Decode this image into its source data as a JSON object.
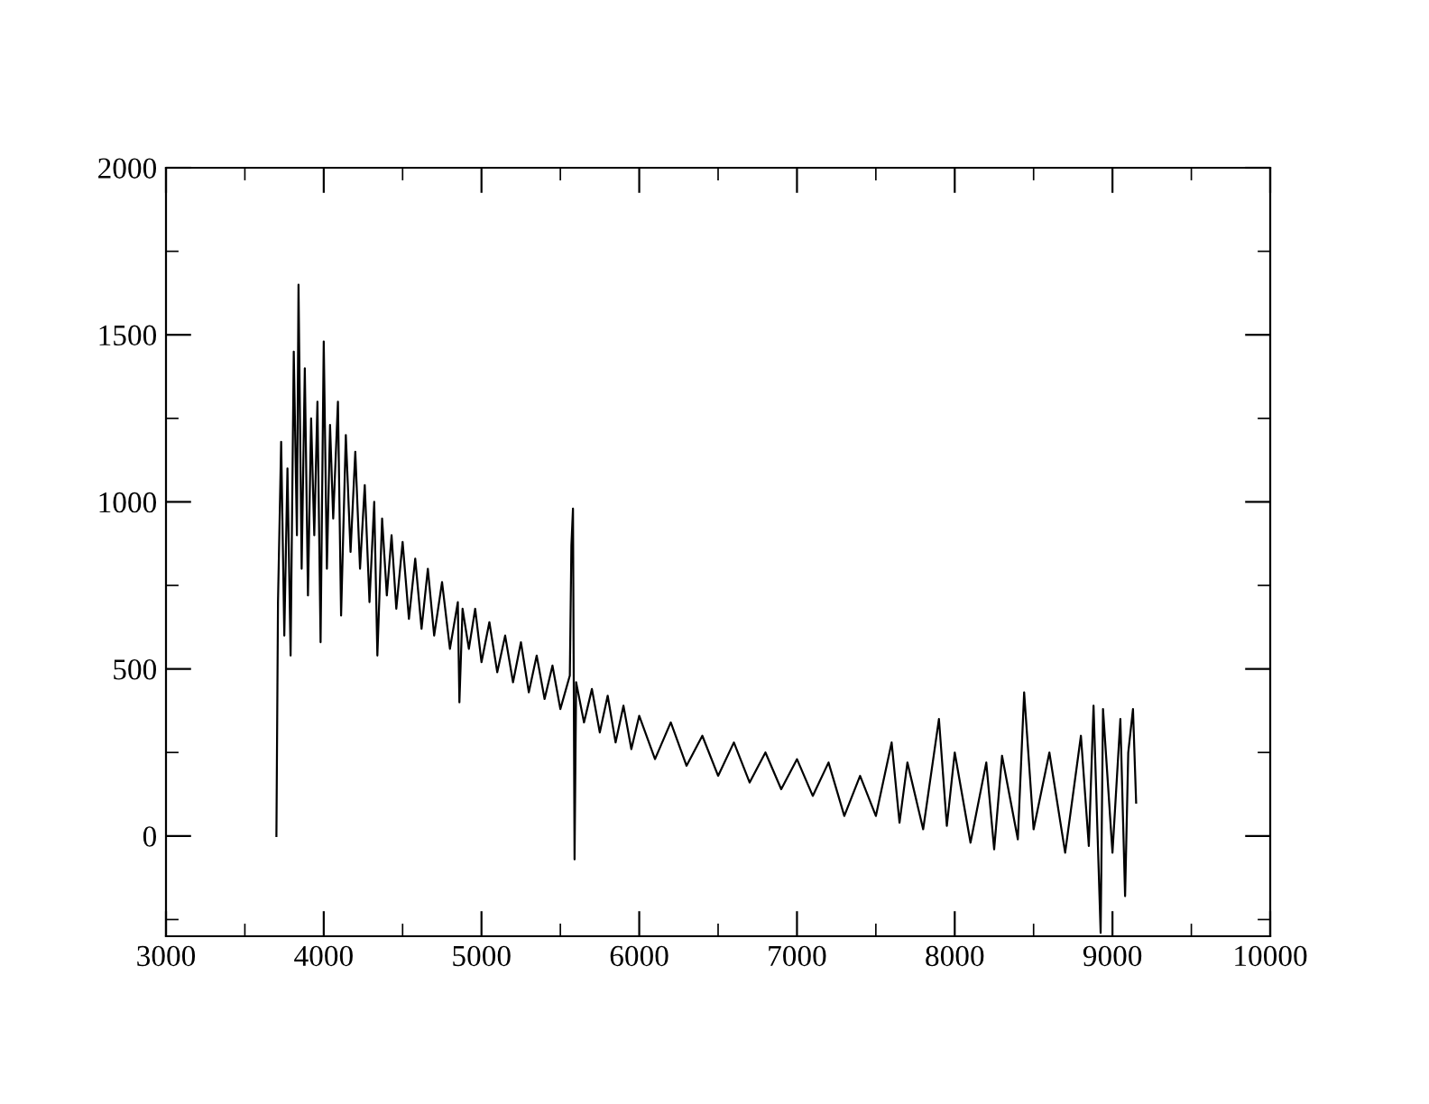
{
  "chart_data": {
    "type": "line",
    "x": [
      3700,
      3710,
      3730,
      3750,
      3770,
      3790,
      3810,
      3830,
      3840,
      3860,
      3880,
      3900,
      3920,
      3940,
      3960,
      3980,
      4000,
      4020,
      4040,
      4060,
      4090,
      4110,
      4140,
      4170,
      4200,
      4230,
      4260,
      4290,
      4320,
      4340,
      4370,
      4400,
      4430,
      4460,
      4500,
      4540,
      4580,
      4620,
      4660,
      4700,
      4750,
      4800,
      4850,
      4860,
      4880,
      4920,
      4960,
      5000,
      5050,
      5100,
      5150,
      5200,
      5250,
      5300,
      5350,
      5400,
      5450,
      5500,
      5560,
      5570,
      5580,
      5590,
      5600,
      5650,
      5700,
      5750,
      5800,
      5850,
      5900,
      5950,
      6000,
      6100,
      6200,
      6300,
      6400,
      6500,
      6600,
      6700,
      6800,
      6900,
      7000,
      7100,
      7200,
      7300,
      7400,
      7500,
      7600,
      7650,
      7700,
      7800,
      7900,
      7950,
      8000,
      8100,
      8200,
      8250,
      8300,
      8400,
      8440,
      8500,
      8600,
      8700,
      8800,
      8850,
      8880,
      8925,
      8940,
      9000,
      9050,
      9080,
      9100,
      9130,
      9150
    ],
    "series": [
      {
        "color": "#000000",
        "values": [
          0,
          700,
          1180,
          600,
          1100,
          540,
          1450,
          900,
          1650,
          800,
          1400,
          720,
          1250,
          900,
          1300,
          580,
          1480,
          800,
          1230,
          950,
          1300,
          660,
          1200,
          850,
          1150,
          800,
          1050,
          700,
          1000,
          540,
          950,
          720,
          900,
          680,
          880,
          650,
          830,
          620,
          800,
          600,
          760,
          560,
          700,
          400,
          680,
          560,
          680,
          520,
          640,
          490,
          600,
          460,
          580,
          430,
          540,
          410,
          510,
          380,
          480,
          870,
          980,
          -70,
          460,
          340,
          440,
          310,
          420,
          280,
          390,
          260,
          360,
          230,
          340,
          210,
          300,
          180,
          280,
          160,
          250,
          140,
          230,
          120,
          220,
          60,
          180,
          60,
          280,
          40,
          220,
          20,
          350,
          30,
          250,
          -20,
          220,
          -40,
          240,
          -10,
          430,
          20,
          250,
          -50,
          300,
          -30,
          390,
          -290,
          380,
          -50,
          350,
          -180,
          250,
          380,
          100
        ]
      }
    ],
    "xlim": [
      3000,
      10000
    ],
    "xticks": [
      3000,
      4000,
      5000,
      6000,
      7000,
      8000,
      9000,
      10000
    ],
    "ylim": [
      -300,
      2000
    ],
    "yticks": [
      0,
      500,
      1000,
      1500,
      2000
    ],
    "grid": false,
    "marker": "none",
    "line_style": "solid"
  }
}
